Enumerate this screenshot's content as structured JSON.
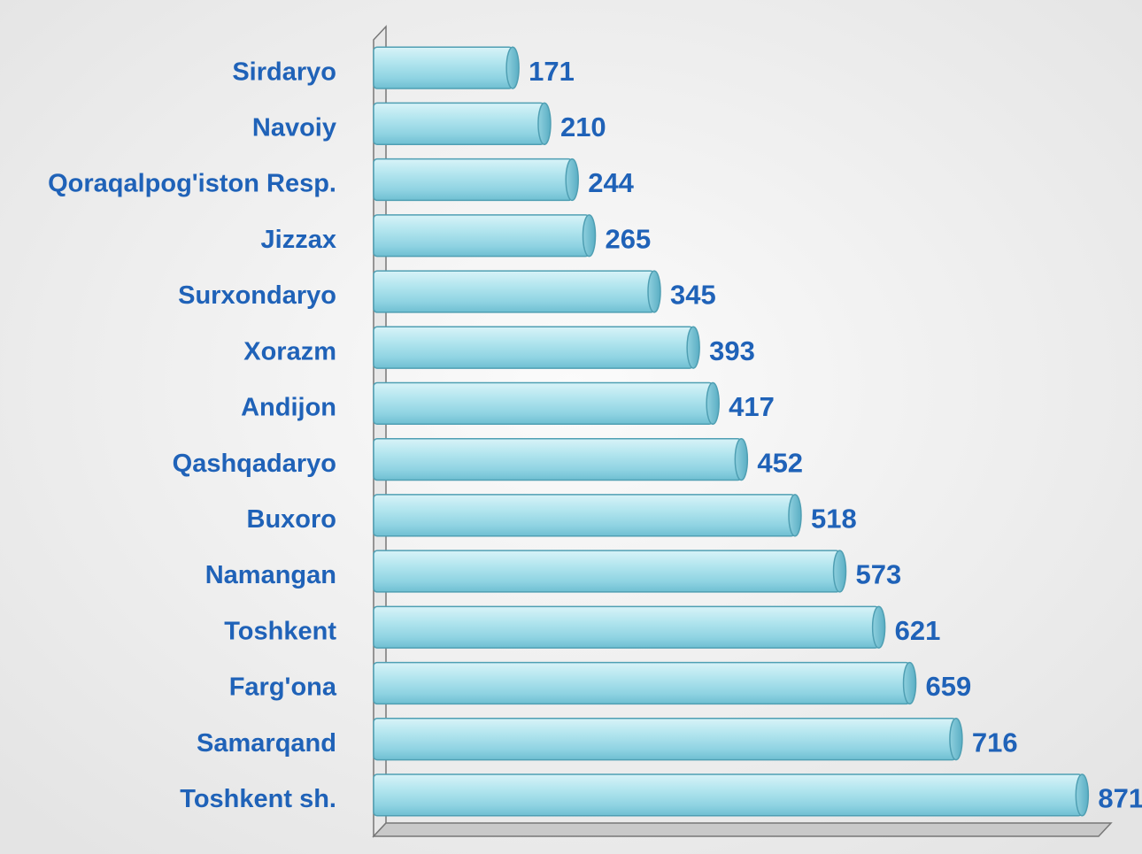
{
  "chart_data": {
    "type": "bar",
    "orientation": "horizontal",
    "categories": [
      "Sirdaryo",
      "Navoiy",
      "Qoraqalpog'iston Resp.",
      "Jizzax",
      "Surxondaryo",
      "Xorazm",
      "Andijon",
      "Qashqadaryo",
      "Buxoro",
      "Namangan",
      "Toshkent",
      "Farg'ona",
      "Samarqand",
      "Toshkent sh."
    ],
    "values": [
      171,
      210,
      244,
      265,
      345,
      393,
      417,
      452,
      518,
      573,
      621,
      659,
      716,
      871
    ],
    "color": "#a6dde8",
    "xlim": [
      0,
      900
    ]
  }
}
